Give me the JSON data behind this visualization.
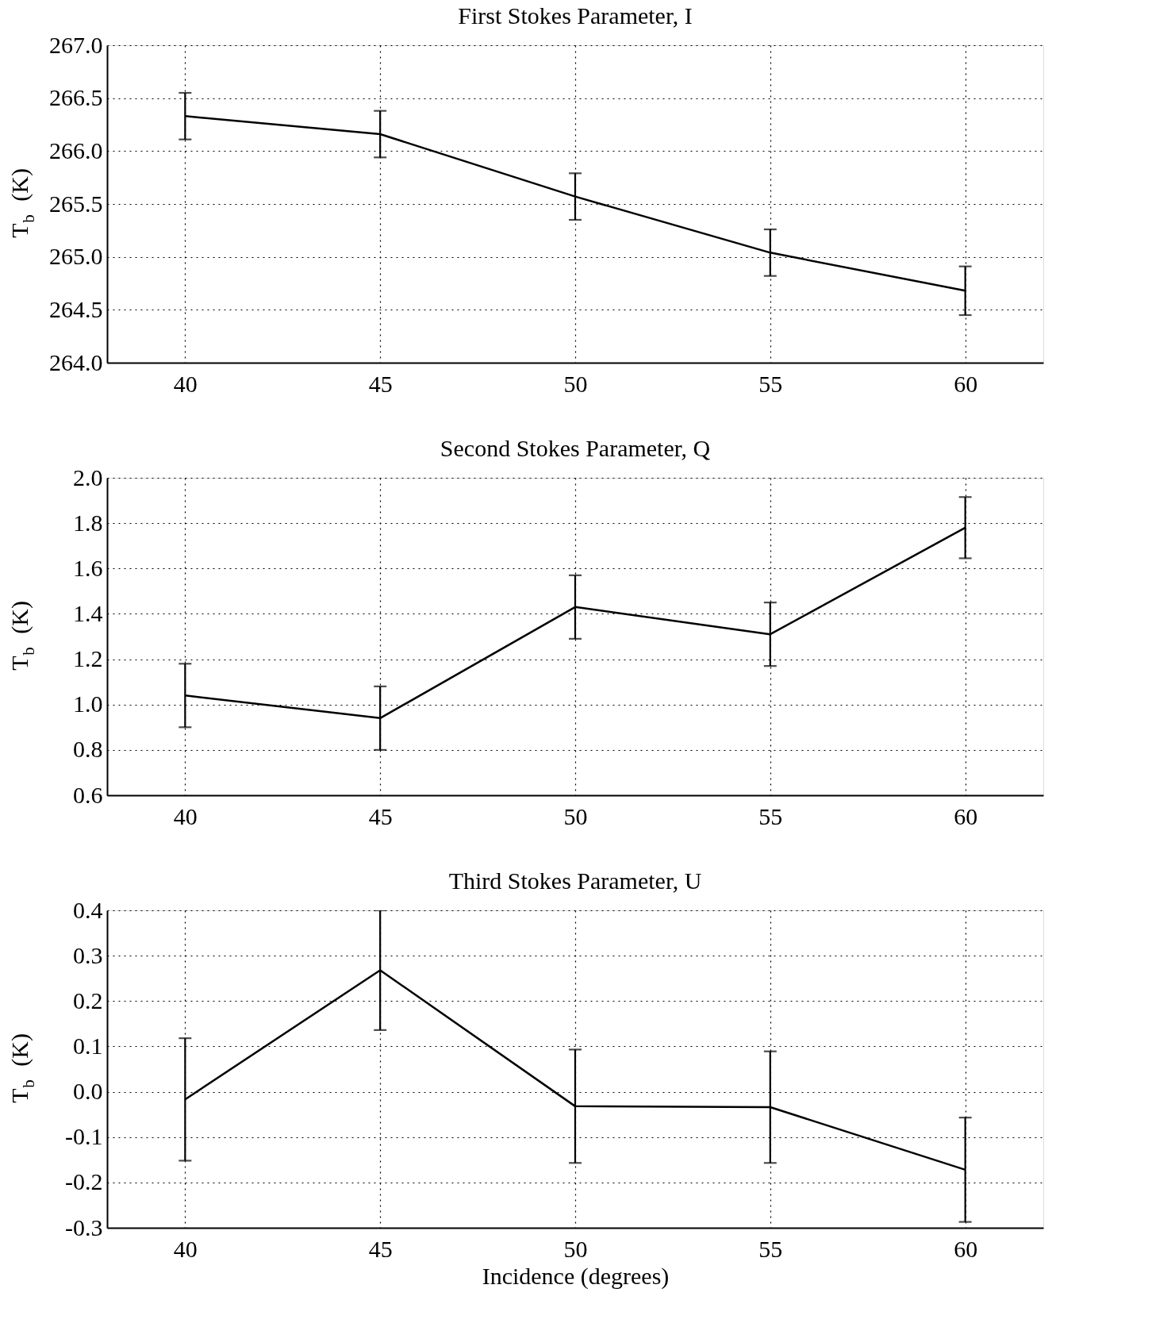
{
  "chart_data": [
    {
      "type": "line",
      "title": "First Stokes Parameter, I",
      "ylabel": "T$_{b}$ (K)",
      "x": [
        40,
        45,
        50,
        55,
        60
      ],
      "color": "#000000",
      "grid": true,
      "marker": "none",
      "line_style": "solid",
      "values": [
        266.33,
        266.16,
        265.57,
        265.04,
        264.68
      ],
      "errors": [
        0.22,
        0.22,
        0.22,
        0.22,
        0.23
      ],
      "xlim": [
        38,
        62
      ],
      "xticks": [
        40,
        45,
        50,
        55,
        60
      ],
      "ylim": [
        264,
        267
      ],
      "yticks": [
        {
          "value": 264,
          "label": "264.0"
        },
        {
          "value": 264.5,
          "label": "264.5"
        },
        {
          "value": 265,
          "label": "265.0"
        },
        {
          "value": 265.5,
          "label": "265.5"
        },
        {
          "value": 266,
          "label": "266.0"
        },
        {
          "value": 266.5,
          "label": "266.5"
        },
        {
          "value": 267,
          "label": "267.0"
        }
      ]
    },
    {
      "type": "line",
      "title": "Second Stokes Parameter, Q",
      "ylabel": "T$_{b}$ (K)",
      "x": [
        40,
        45,
        50,
        55,
        60
      ],
      "color": "#000000",
      "grid": true,
      "marker": "none",
      "line_style": "solid",
      "values": [
        1.04,
        0.94,
        1.43,
        1.31,
        1.78
      ],
      "errors": [
        0.14,
        0.14,
        0.14,
        0.14,
        0.135
      ],
      "xlim": [
        38,
        62
      ],
      "xticks": [
        40,
        45,
        50,
        55,
        60
      ],
      "ylim": [
        0.6,
        2.0
      ],
      "yticks": [
        {
          "value": 0.6,
          "label": "0.6"
        },
        {
          "value": 0.8,
          "label": "0.8"
        },
        {
          "value": 1.0,
          "label": "1.0"
        },
        {
          "value": 1.2,
          "label": "1.2"
        },
        {
          "value": 1.4,
          "label": "1.4"
        },
        {
          "value": 1.6,
          "label": "1.6"
        },
        {
          "value": 1.8,
          "label": "1.8"
        },
        {
          "value": 2.0,
          "label": "2.0"
        }
      ]
    },
    {
      "type": "line",
      "title": "Third Stokes Parameter, U",
      "ylabel": "T$_{b}$ (K)",
      "xlabel": "Incidence (degrees)",
      "x": [
        40,
        45,
        50,
        55,
        60
      ],
      "color": "#000000",
      "grid": true,
      "marker": "none",
      "line_style": "solid",
      "values": [
        -0.017,
        0.268,
        -0.032,
        -0.034,
        -0.172
      ],
      "errors": [
        0.135,
        0.132,
        0.125,
        0.123,
        0.115
      ],
      "xlim": [
        38,
        62
      ],
      "xticks": [
        40,
        45,
        50,
        55,
        60
      ],
      "ylim": [
        -0.3,
        0.4
      ],
      "yticks": [
        {
          "value": -0.3,
          "label": "-0.3"
        },
        {
          "value": -0.2,
          "label": "-0.2"
        },
        {
          "value": -0.1,
          "label": "-0.1"
        },
        {
          "value": 0.0,
          "label": "0.0"
        },
        {
          "value": 0.1,
          "label": "0.1"
        },
        {
          "value": 0.2,
          "label": "0.2"
        },
        {
          "value": 0.3,
          "label": "0.3"
        },
        {
          "value": 0.4,
          "label": "0.4"
        }
      ]
    }
  ]
}
